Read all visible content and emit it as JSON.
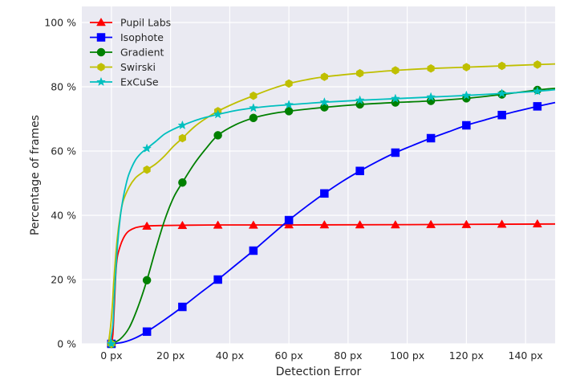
{
  "chart_data": {
    "type": "line",
    "xlabel": "Detection Error",
    "ylabel": "Percentage of frames",
    "xlim": [
      -10,
      150
    ],
    "ylim": [
      0,
      105
    ],
    "grid": true,
    "legend_position": "top-left",
    "x_ticks": [
      {
        "value": 0,
        "label": "0 px"
      },
      {
        "value": 20,
        "label": "20 px"
      },
      {
        "value": 40,
        "label": "40 px"
      },
      {
        "value": 60,
        "label": "60 px"
      },
      {
        "value": 80,
        "label": "80 px"
      },
      {
        "value": 100,
        "label": "100 px"
      },
      {
        "value": 120,
        "label": "120 px"
      },
      {
        "value": 140,
        "label": "140 px"
      }
    ],
    "y_ticks": [
      {
        "value": 0,
        "label": "0 %"
      },
      {
        "value": 20,
        "label": "20 %"
      },
      {
        "value": 40,
        "label": "40 %"
      },
      {
        "value": 60,
        "label": "60 %"
      },
      {
        "value": 80,
        "label": "80 %"
      },
      {
        "value": 100,
        "label": "100 %"
      }
    ],
    "series": [
      {
        "name": "Pupil Labs",
        "color": "#ff0000",
        "marker": "triangle",
        "curve": [
          [
            0,
            0
          ],
          [
            0.5,
            3
          ],
          [
            1,
            12
          ],
          [
            1.5,
            22
          ],
          [
            2,
            27
          ],
          [
            3,
            30.5
          ],
          [
            4,
            32.8
          ],
          [
            5,
            34.3
          ],
          [
            6,
            35.2
          ],
          [
            8,
            36.1
          ],
          [
            10,
            36.5
          ],
          [
            12,
            36.7
          ],
          [
            16,
            36.8
          ],
          [
            24,
            36.9
          ],
          [
            36,
            37.0
          ],
          [
            60,
            37.0
          ],
          [
            100,
            37.1
          ],
          [
            150,
            37.3
          ]
        ],
        "markers": [
          [
            0,
            0
          ],
          [
            12,
            36.6
          ],
          [
            24,
            36.8
          ],
          [
            36,
            36.9
          ],
          [
            48,
            36.9
          ],
          [
            60,
            37.0
          ],
          [
            72,
            37.0
          ],
          [
            84,
            37.0
          ],
          [
            96,
            37.0
          ],
          [
            108,
            37.1
          ],
          [
            120,
            37.1
          ],
          [
            132,
            37.2
          ],
          [
            144,
            37.3
          ]
        ]
      },
      {
        "name": "Isophote",
        "color": "#0000ff",
        "marker": "square",
        "curve": [
          [
            0,
            0
          ],
          [
            4,
            0.5
          ],
          [
            8,
            1.8
          ],
          [
            12,
            3.8
          ],
          [
            18,
            7.5
          ],
          [
            24,
            11.5
          ],
          [
            30,
            15.8
          ],
          [
            36,
            20.0
          ],
          [
            42,
            24.5
          ],
          [
            48,
            29.0
          ],
          [
            54,
            33.8
          ],
          [
            60,
            38.5
          ],
          [
            66,
            42.8
          ],
          [
            72,
            46.8
          ],
          [
            78,
            50.5
          ],
          [
            84,
            53.8
          ],
          [
            90,
            56.8
          ],
          [
            96,
            59.5
          ],
          [
            102,
            61.8
          ],
          [
            108,
            64.0
          ],
          [
            114,
            66.0
          ],
          [
            120,
            68.0
          ],
          [
            126,
            69.6
          ],
          [
            132,
            71.2
          ],
          [
            138,
            72.6
          ],
          [
            144,
            73.9
          ],
          [
            150,
            75.1
          ]
        ],
        "markers": [
          [
            0,
            0
          ],
          [
            12,
            3.8
          ],
          [
            24,
            11.5
          ],
          [
            36,
            20.0
          ],
          [
            48,
            29.0
          ],
          [
            60,
            38.5
          ],
          [
            72,
            46.8
          ],
          [
            84,
            53.8
          ],
          [
            96,
            59.5
          ],
          [
            108,
            64.0
          ],
          [
            120,
            68.0
          ],
          [
            132,
            71.2
          ],
          [
            144,
            73.9
          ]
        ]
      },
      {
        "name": "Gradient",
        "color": "#008000",
        "marker": "circle",
        "curve": [
          [
            0,
            0
          ],
          [
            3,
            1.5
          ],
          [
            6,
            5
          ],
          [
            9,
            11.5
          ],
          [
            12,
            19.8
          ],
          [
            15,
            29.5
          ],
          [
            18,
            38.5
          ],
          [
            21,
            45.5
          ],
          [
            24,
            50.2
          ],
          [
            28,
            56.0
          ],
          [
            32,
            60.8
          ],
          [
            36,
            64.9
          ],
          [
            42,
            68.2
          ],
          [
            48,
            70.3
          ],
          [
            54,
            71.6
          ],
          [
            60,
            72.4
          ],
          [
            72,
            73.6
          ],
          [
            84,
            74.5
          ],
          [
            96,
            75.1
          ],
          [
            108,
            75.6
          ],
          [
            120,
            76.4
          ],
          [
            132,
            77.6
          ],
          [
            144,
            79.0
          ],
          [
            150,
            79.5
          ]
        ],
        "markers": [
          [
            0,
            0
          ],
          [
            12,
            19.8
          ],
          [
            24,
            50.2
          ],
          [
            36,
            64.9
          ],
          [
            48,
            70.3
          ],
          [
            60,
            72.4
          ],
          [
            72,
            73.6
          ],
          [
            84,
            74.5
          ],
          [
            96,
            75.1
          ],
          [
            108,
            75.6
          ],
          [
            120,
            76.4
          ],
          [
            132,
            77.6
          ],
          [
            144,
            79.0
          ]
        ]
      },
      {
        "name": "Swirski",
        "color": "#bfbf00",
        "marker": "hexagon",
        "curve": [
          [
            -1,
            0
          ],
          [
            0,
            8
          ],
          [
            1,
            22
          ],
          [
            2,
            33
          ],
          [
            3,
            40
          ],
          [
            4,
            44.5
          ],
          [
            6,
            48.8
          ],
          [
            8,
            51.5
          ],
          [
            10,
            53.0
          ],
          [
            12,
            54.2
          ],
          [
            15,
            56.0
          ],
          [
            18,
            58.5
          ],
          [
            21,
            61.5
          ],
          [
            24,
            64.0
          ],
          [
            28,
            67.5
          ],
          [
            32,
            70.2
          ],
          [
            36,
            72.4
          ],
          [
            42,
            75.0
          ],
          [
            48,
            77.2
          ],
          [
            54,
            79.3
          ],
          [
            60,
            81.0
          ],
          [
            66,
            82.2
          ],
          [
            72,
            83.1
          ],
          [
            84,
            84.2
          ],
          [
            96,
            85.1
          ],
          [
            108,
            85.7
          ],
          [
            120,
            86.1
          ],
          [
            132,
            86.5
          ],
          [
            144,
            86.9
          ],
          [
            150,
            87.1
          ]
        ],
        "markers": [
          [
            0,
            0
          ],
          [
            12,
            54.2
          ],
          [
            24,
            64.0
          ],
          [
            36,
            72.4
          ],
          [
            48,
            77.2
          ],
          [
            60,
            81.0
          ],
          [
            72,
            83.1
          ],
          [
            84,
            84.2
          ],
          [
            96,
            85.1
          ],
          [
            108,
            85.7
          ],
          [
            120,
            86.1
          ],
          [
            132,
            86.5
          ],
          [
            144,
            86.9
          ]
        ]
      },
      {
        "name": "ExCuSe",
        "color": "#00bfbf",
        "marker": "star",
        "curve": [
          [
            -0.5,
            0
          ],
          [
            0.5,
            6
          ],
          [
            1,
            15
          ],
          [
            2,
            30
          ],
          [
            3,
            39.5
          ],
          [
            4,
            45.5
          ],
          [
            5,
            49.8
          ],
          [
            6,
            53.0
          ],
          [
            8,
            57.0
          ],
          [
            10,
            59.3
          ],
          [
            12,
            60.8
          ],
          [
            15,
            63.0
          ],
          [
            18,
            65.3
          ],
          [
            21,
            66.8
          ],
          [
            24,
            68.0
          ],
          [
            30,
            70.0
          ],
          [
            36,
            71.4
          ],
          [
            42,
            72.6
          ],
          [
            48,
            73.4
          ],
          [
            54,
            74.0
          ],
          [
            60,
            74.4
          ],
          [
            72,
            75.2
          ],
          [
            84,
            75.8
          ],
          [
            96,
            76.3
          ],
          [
            108,
            76.8
          ],
          [
            120,
            77.3
          ],
          [
            132,
            77.9
          ],
          [
            144,
            78.6
          ],
          [
            150,
            79.1
          ]
        ],
        "markers": [
          [
            0,
            0
          ],
          [
            12,
            60.8
          ],
          [
            24,
            68.0
          ],
          [
            36,
            71.4
          ],
          [
            48,
            73.4
          ],
          [
            60,
            74.4
          ],
          [
            72,
            75.2
          ],
          [
            84,
            75.8
          ],
          [
            96,
            76.3
          ],
          [
            108,
            76.8
          ],
          [
            120,
            77.3
          ],
          [
            132,
            77.9
          ],
          [
            144,
            78.6
          ]
        ]
      }
    ]
  }
}
